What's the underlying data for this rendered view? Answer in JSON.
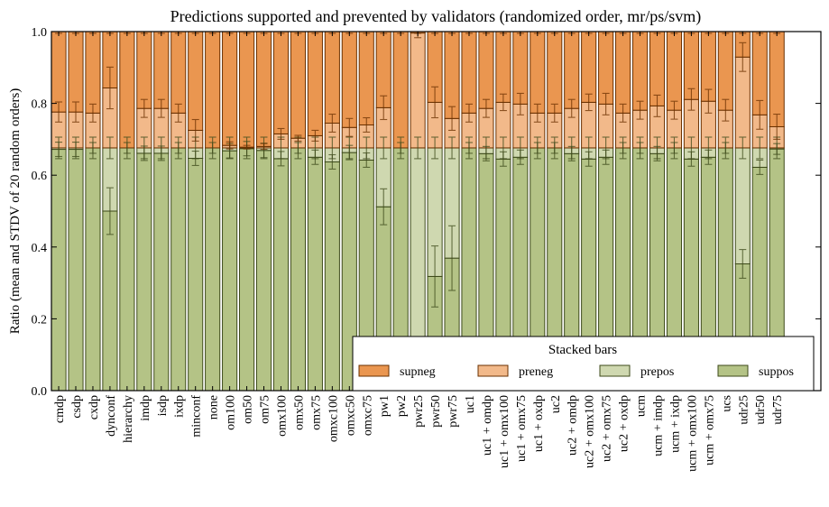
{
  "chart_data": {
    "type": "bar",
    "stacked": true,
    "title": "Predictions supported and prevented by validators (randomized order, mr/ps/svm)",
    "xlabel": "",
    "ylabel": "Ratio (mean and STDV of 20 random orders)",
    "ylim": [
      0,
      1.0
    ],
    "xlim": [
      0,
      45
    ],
    "yticks": [
      "0.0",
      "0.2",
      "0.4",
      "0.6",
      "0.8",
      "1.0"
    ],
    "grid": false,
    "legend": {
      "title": "Stacked bars",
      "placement": "bottom-right",
      "entries": [
        "supneg",
        "preneg",
        "prepos",
        "suppos"
      ]
    },
    "categories": [
      "cmdp",
      "csdp",
      "cxdp",
      "dynconf",
      "hierarchy",
      "imdp",
      "isdp",
      "ixdp",
      "minconf",
      "none",
      "om100",
      "om50",
      "om75",
      "omx100",
      "omx50",
      "omx75",
      "omxc100",
      "omxc50",
      "omxc75",
      "pw1",
      "pw2",
      "pwr25",
      "pwr50",
      "pwr75",
      "uc1",
      "uc1 + omdp",
      "uc1 + omx100",
      "uc1 + omx75",
      "uc1 + oxdp",
      "uc2",
      "uc2 + omdp",
      "uc2 + omx100",
      "uc2 + omx75",
      "uc2 + oxdp",
      "ucm",
      "ucm + imdp",
      "ucm + ixdp",
      "ucm + omx100",
      "ucm + omx75",
      "ucs",
      "udr25",
      "udr50",
      "udr75"
    ],
    "series": [
      {
        "name": "suppos",
        "color": "#b4c386",
        "edge": "#3d4a1a",
        "values": [
          0.672,
          0.672,
          0.676,
          0.5,
          0.676,
          0.661,
          0.661,
          0.676,
          0.647,
          0.676,
          0.668,
          0.674,
          0.669,
          0.646,
          0.676,
          0.65,
          0.637,
          0.663,
          0.642,
          0.512,
          0.676,
          0.0,
          0.318,
          0.369,
          0.676,
          0.66,
          0.645,
          0.65,
          0.676,
          0.676,
          0.66,
          0.645,
          0.65,
          0.676,
          0.676,
          0.66,
          0.676,
          0.645,
          0.65,
          0.676,
          0.353,
          0.622,
          0.673
        ],
        "stdv": [
          0.02,
          0.02,
          0.015,
          0.065,
          0.015,
          0.02,
          0.02,
          0.015,
          0.02,
          0.015,
          0.02,
          0.02,
          0.02,
          0.02,
          0.015,
          0.02,
          0.02,
          0.02,
          0.02,
          0.05,
          0.015,
          0.0,
          0.085,
          0.09,
          0.015,
          0.02,
          0.02,
          0.02,
          0.015,
          0.015,
          0.02,
          0.02,
          0.02,
          0.015,
          0.015,
          0.02,
          0.015,
          0.02,
          0.02,
          0.015,
          0.04,
          0.02,
          0.015
        ]
      },
      {
        "name": "prepos",
        "color": "#cfd8b0",
        "edge": "#3d4a1a",
        "values": [
          0.004,
          0.004,
          0.0,
          0.176,
          0.0,
          0.015,
          0.015,
          0.0,
          0.029,
          0.0,
          0.008,
          0.002,
          0.007,
          0.03,
          0.0,
          0.026,
          0.039,
          0.013,
          0.034,
          0.164,
          0.0,
          0.676,
          0.358,
          0.307,
          0.0,
          0.016,
          0.031,
          0.026,
          0.0,
          0.0,
          0.016,
          0.031,
          0.026,
          0.0,
          0.0,
          0.016,
          0.0,
          0.031,
          0.026,
          0.0,
          0.323,
          0.054,
          0.003
        ],
        "stdv": [
          0.03,
          0.03,
          0.03,
          0.03,
          0.03,
          0.03,
          0.03,
          0.03,
          0.03,
          0.03,
          0.03,
          0.03,
          0.03,
          0.03,
          0.03,
          0.03,
          0.03,
          0.03,
          0.03,
          0.03,
          0.03,
          0.03,
          0.03,
          0.03,
          0.03,
          0.03,
          0.03,
          0.03,
          0.03,
          0.03,
          0.03,
          0.03,
          0.03,
          0.03,
          0.03,
          0.03,
          0.03,
          0.03,
          0.03,
          0.03,
          0.03,
          0.03,
          0.03
        ]
      },
      {
        "name": "preneg",
        "color": "#f2b98a",
        "edge": "#6a3000",
        "values": [
          0.1,
          0.1,
          0.097,
          0.167,
          0.0,
          0.11,
          0.11,
          0.097,
          0.049,
          0.0,
          0.007,
          0.002,
          0.004,
          0.039,
          0.027,
          0.034,
          0.069,
          0.057,
          0.064,
          0.112,
          0.0,
          0.32,
          0.127,
          0.082,
          0.097,
          0.11,
          0.127,
          0.122,
          0.097,
          0.097,
          0.11,
          0.127,
          0.122,
          0.097,
          0.105,
          0.117,
          0.105,
          0.135,
          0.13,
          0.105,
          0.253,
          0.092,
          0.059
        ],
        "stdv": [
          0.028,
          0.028,
          0.025,
          0.058,
          0.0,
          0.025,
          0.025,
          0.025,
          0.03,
          0.0,
          0.01,
          0.005,
          0.008,
          0.015,
          0.008,
          0.015,
          0.025,
          0.025,
          0.02,
          0.033,
          0.0,
          0.013,
          0.043,
          0.033,
          0.025,
          0.025,
          0.023,
          0.03,
          0.025,
          0.025,
          0.025,
          0.023,
          0.03,
          0.025,
          0.025,
          0.03,
          0.025,
          0.03,
          0.033,
          0.03,
          0.04,
          0.04,
          0.035
        ]
      },
      {
        "name": "supneg",
        "color": "#ea9650",
        "edge": "#6a3000",
        "values": [
          0.224,
          0.224,
          0.227,
          0.157,
          0.324,
          0.214,
          0.214,
          0.227,
          0.275,
          0.324,
          0.317,
          0.322,
          0.32,
          0.285,
          0.297,
          0.29,
          0.255,
          0.267,
          0.26,
          0.212,
          0.324,
          0.004,
          0.197,
          0.242,
          0.227,
          0.214,
          0.197,
          0.202,
          0.227,
          0.227,
          0.214,
          0.197,
          0.202,
          0.227,
          0.219,
          0.207,
          0.219,
          0.189,
          0.194,
          0.219,
          0.071,
          0.232,
          0.265
        ],
        "stdv": [
          0.005,
          0.005,
          0.005,
          0.005,
          0.005,
          0.005,
          0.005,
          0.005,
          0.005,
          0.005,
          0.005,
          0.005,
          0.005,
          0.005,
          0.005,
          0.005,
          0.005,
          0.005,
          0.005,
          0.005,
          0.005,
          0.005,
          0.005,
          0.005,
          0.005,
          0.005,
          0.005,
          0.005,
          0.005,
          0.005,
          0.005,
          0.005,
          0.005,
          0.005,
          0.005,
          0.005,
          0.005,
          0.005,
          0.005,
          0.005,
          0.005,
          0.005,
          0.005
        ]
      }
    ]
  }
}
